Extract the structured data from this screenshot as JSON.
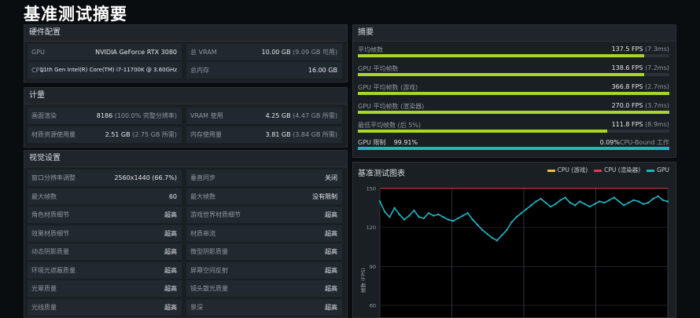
{
  "title": "基准测试摘要",
  "hardware": {
    "header": "硬件配置",
    "rows": [
      {
        "k": "GPU",
        "v": "NVIDIA GeForce RTX 3080",
        "s": ""
      },
      {
        "k": "总 VRAM",
        "v": "10.00 GB",
        "s": "(9.09 GB 可用)"
      },
      {
        "k": "CPU",
        "v": "11th Gen Intel(R) Core(TM) i7-11700K @ 3.60GHz",
        "s": ""
      },
      {
        "k": "总内存",
        "v": "16.00 GB",
        "s": ""
      }
    ]
  },
  "stats": {
    "header": "计量",
    "rows": [
      {
        "k": "画面渲染",
        "v": "8186",
        "s": "(100.0% 完整分辨率)"
      },
      {
        "k": "VRAM 使用",
        "v": "4.25 GB",
        "s": "(4.47 GB 所需)"
      },
      {
        "k": "材质资源使用量",
        "v": "2.51 GB",
        "s": "(2.75 GB 所需)"
      },
      {
        "k": "内存使用量",
        "v": "3.81 GB",
        "s": "(3.84 GB 所需)"
      }
    ]
  },
  "visual": {
    "header": "视觉设置",
    "left": [
      {
        "k": "窗口分辨率调整",
        "v": "2560x1440 (66.7%)"
      },
      {
        "k": "最大帧数",
        "v": "60"
      },
      {
        "k": "角色材质细节",
        "v": "超高"
      },
      {
        "k": "效果材质细节",
        "v": "超高"
      },
      {
        "k": "动态阴影质量",
        "v": "超高"
      },
      {
        "k": "环境光遮蔽质量",
        "v": "超高"
      },
      {
        "k": "光晕质量",
        "v": "超高"
      },
      {
        "k": "光线质量",
        "v": "超高"
      }
    ],
    "right": [
      {
        "k": "垂直同步",
        "v": "关闭"
      },
      {
        "k": "最大帧数",
        "v": "没有限制"
      },
      {
        "k": "游戏世界材质细节",
        "v": "超高"
      },
      {
        "k": "材质串流",
        "v": "超高"
      },
      {
        "k": "微型阴影质量",
        "v": "超高"
      },
      {
        "k": "屏幕空间反射",
        "v": "超高"
      },
      {
        "k": "镜头散光质量",
        "v": "超高"
      },
      {
        "k": "景深",
        "v": "超高"
      }
    ]
  },
  "summary": {
    "header": "摘要",
    "rows": [
      {
        "k": "平均帧数",
        "v": "137.5 FPS",
        "s": "(7.3ms)",
        "fill": 0.92,
        "color": "#a7d52a"
      },
      {
        "k": "GPU 平均帧数",
        "v": "138.6 FPS",
        "s": "(7.2ms)",
        "fill": 0.92,
        "color": "#a7d52a"
      },
      {
        "k": "GPU 平均帧数 (游戏)",
        "v": "366.8 FPS",
        "s": "(2.7ms)",
        "fill": 1.0,
        "color": "#a7d52a"
      },
      {
        "k": "GPU 平均帧数 (渲染器)",
        "v": "270.0 FPS",
        "s": "(3.7ms)",
        "fill": 1.0,
        "color": "#a7d52a"
      },
      {
        "k": "最低平均帧数 (后 5%)",
        "v": "111.8 FPS",
        "s": "(8.9ms)",
        "fill": 0.8,
        "color": "#a7d52a"
      }
    ],
    "bound": {
      "left_label": "GPU 限制",
      "left_value": "99.91%",
      "right_value": "0.09%",
      "right_label": "CPU-Bound 工作",
      "fill": 0.9991,
      "color": "#1fb6c4"
    }
  },
  "chart_panel": {
    "header": "基准测试图表"
  },
  "chart_data": {
    "type": "line",
    "ylabel": "帧数 (FPS)",
    "yticks": [
      60,
      90,
      120,
      150
    ],
    "ylim": [
      40,
      150
    ],
    "legend_position": "top-right",
    "series": [
      {
        "name": "CPU (游戏)",
        "color": "#e8c23a",
        "values": []
      },
      {
        "name": "CPU (渲染器)",
        "color": "#e03a4a",
        "values": [
          150,
          150,
          150,
          150,
          150,
          150,
          150,
          150,
          150,
          150,
          150,
          150,
          150,
          150,
          150,
          150,
          150,
          150,
          150,
          150,
          150,
          150,
          150,
          150,
          150,
          150,
          150,
          150,
          150,
          150,
          150,
          150,
          150,
          150,
          150,
          150,
          150,
          150,
          150,
          150,
          150,
          150,
          150,
          150,
          150,
          150,
          150,
          150,
          150,
          150,
          150,
          150,
          150,
          150,
          150,
          150,
          150,
          150,
          150,
          150
        ]
      },
      {
        "name": "GPU",
        "color": "#1fb6c4",
        "values": [
          140,
          132,
          128,
          135,
          130,
          126,
          129,
          133,
          128,
          127,
          131,
          129,
          130,
          128,
          126,
          125,
          127,
          129,
          131,
          126,
          122,
          118,
          115,
          112,
          110,
          114,
          118,
          124,
          128,
          131,
          134,
          137,
          140,
          142,
          139,
          136,
          138,
          141,
          143,
          139,
          137,
          140,
          138,
          136,
          138,
          140,
          139,
          141,
          143,
          140,
          137,
          139,
          141,
          140,
          138,
          139,
          142,
          144,
          141,
          140
        ]
      }
    ]
  }
}
